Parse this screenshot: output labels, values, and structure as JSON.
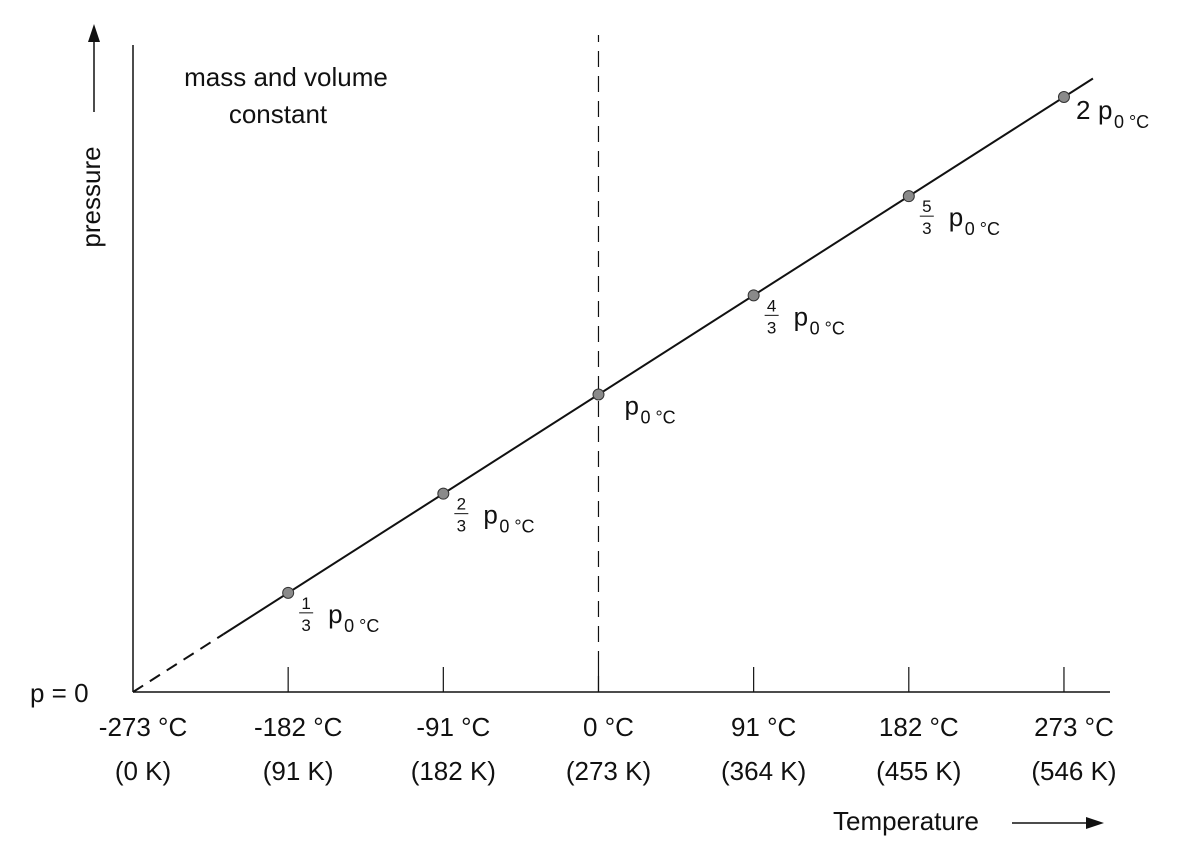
{
  "chart_data": {
    "type": "line",
    "annotation": [
      "mass and volume",
      "constant"
    ],
    "xlabel": "Temperature",
    "ylabel": "pressure",
    "y_origin_label": "p = 0",
    "xlim": [
      -273,
      300
    ],
    "ylim": [
      0,
      2.1
    ],
    "grid": false,
    "x_ticks": [
      {
        "value": -273,
        "celsius": "-273 °C",
        "kelvin": "(0 K)"
      },
      {
        "value": -182,
        "celsius": "-182 °C",
        "kelvin": "(91 K)"
      },
      {
        "value": -91,
        "celsius": "-91 °C",
        "kelvin": "(182 K)"
      },
      {
        "value": 0,
        "celsius": "0 °C",
        "kelvin": "(273 K)"
      },
      {
        "value": 91,
        "celsius": "91 °C",
        "kelvin": "(364 K)"
      },
      {
        "value": 182,
        "celsius": "182 °C",
        "kelvin": "(455 K)"
      },
      {
        "value": 273,
        "celsius": "273 °C",
        "kelvin": "(546 K)"
      }
    ],
    "series": [
      {
        "points": [
          {
            "x": -182,
            "y": 0.3333,
            "coef_num": "1",
            "coef_den": "3",
            "coef_whole": "",
            "sym": "p",
            "sub": "0 °C"
          },
          {
            "x": -91,
            "y": 0.6667,
            "coef_num": "2",
            "coef_den": "3",
            "coef_whole": "",
            "sym": "p",
            "sub": "0 °C"
          },
          {
            "x": 0,
            "y": 1.0,
            "coef_num": "",
            "coef_den": "",
            "coef_whole": "",
            "sym": "p",
            "sub": "0 °C"
          },
          {
            "x": 91,
            "y": 1.3333,
            "coef_num": "4",
            "coef_den": "3",
            "coef_whole": "",
            "sym": "p",
            "sub": "0 °C"
          },
          {
            "x": 182,
            "y": 1.6667,
            "coef_num": "5",
            "coef_den": "3",
            "coef_whole": "",
            "sym": "p",
            "sub": "0 °C"
          },
          {
            "x": 273,
            "y": 2.0,
            "coef_num": "",
            "coef_den": "",
            "coef_whole": "2",
            "sym": "p",
            "sub": "0 °C"
          }
        ],
        "extrapolated_x_range": [
          -273,
          -220
        ],
        "line_x_end": 290
      }
    ],
    "reference_line": {
      "x": 0,
      "style": "dashed"
    }
  },
  "colors": {
    "line": "#111111",
    "marker": "#8a8a8a",
    "axis": "#111111"
  }
}
